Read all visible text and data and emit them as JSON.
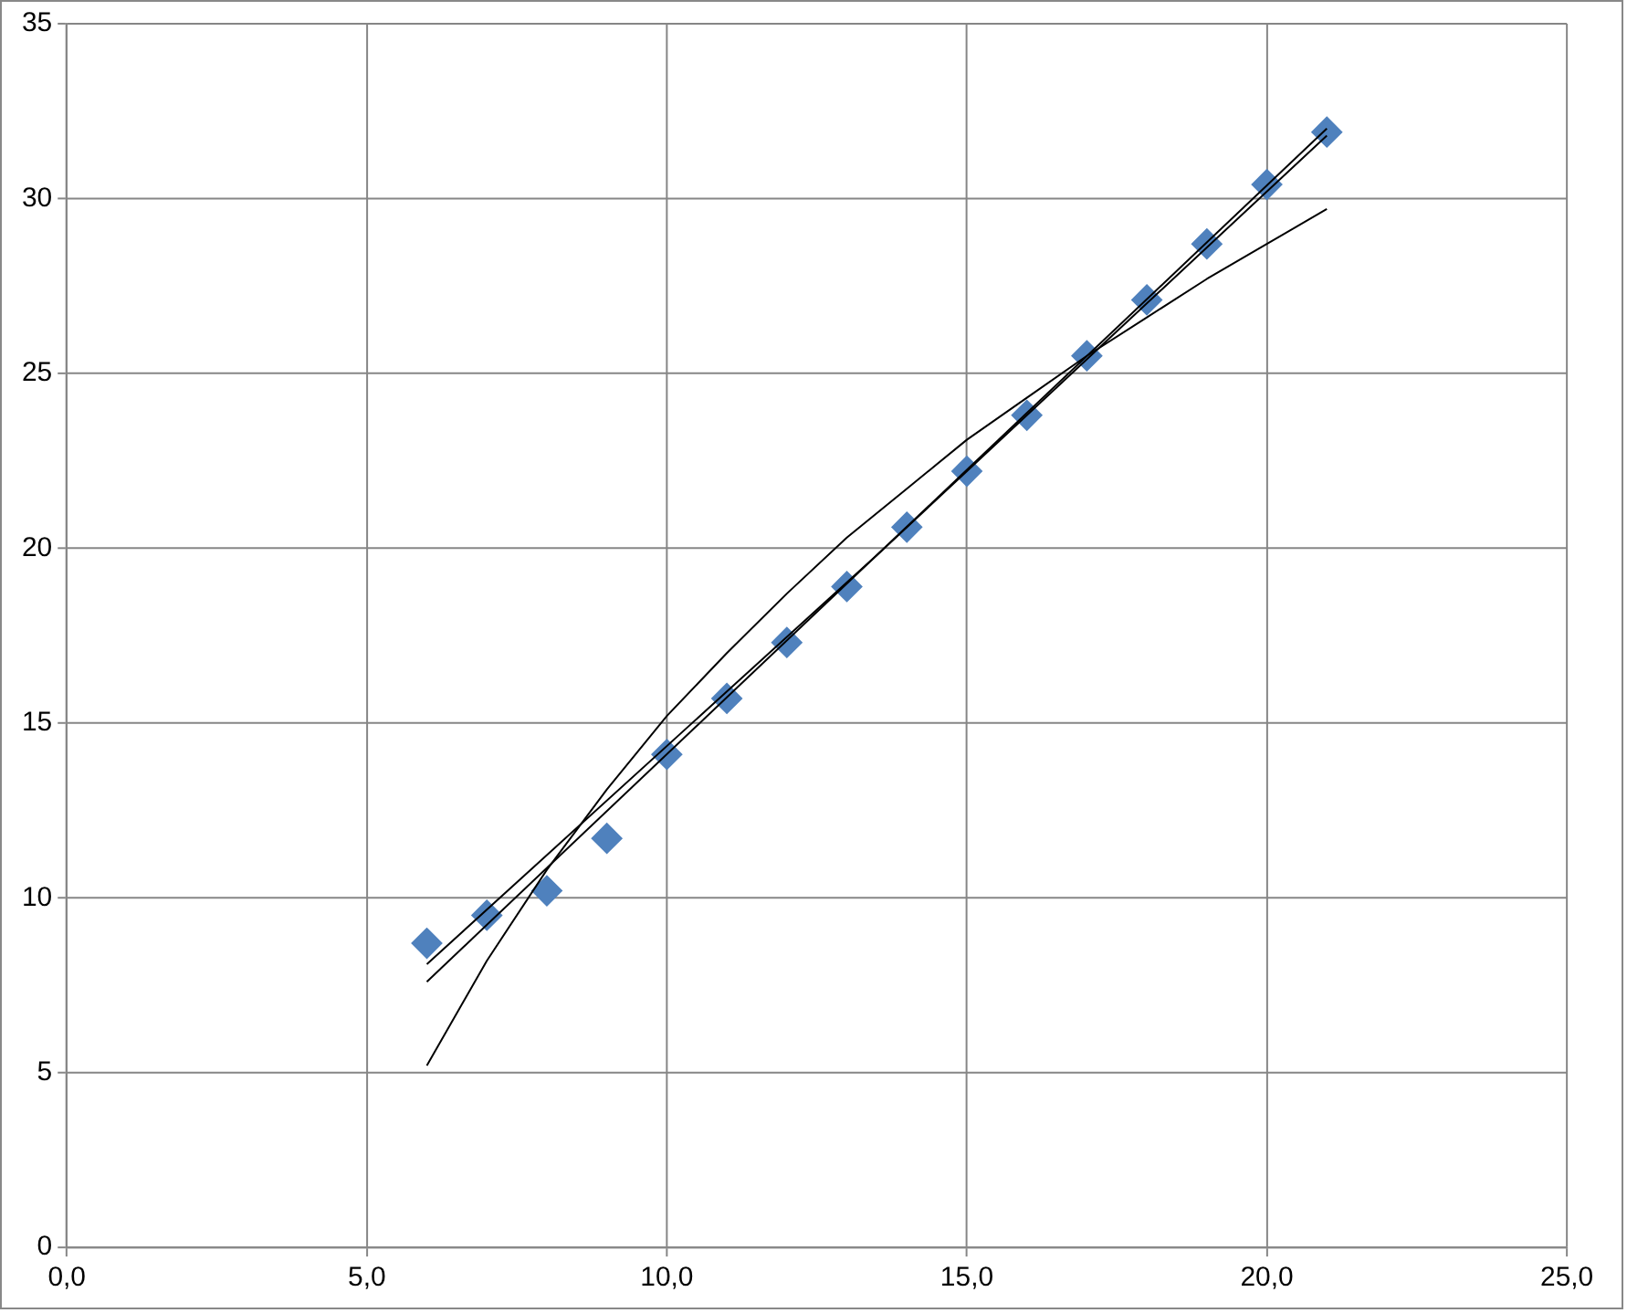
{
  "chart_data": {
    "type": "scatter",
    "marker": "diamond",
    "grid": true,
    "legend": false,
    "xlim": [
      0,
      25
    ],
    "xticks": [
      {
        "value": 0,
        "label": "0,0"
      },
      {
        "value": 5,
        "label": "5,0"
      },
      {
        "value": 10,
        "label": "10,0"
      },
      {
        "value": 15,
        "label": "15,0"
      },
      {
        "value": 20,
        "label": "20,0"
      },
      {
        "value": 25,
        "label": "25,0"
      }
    ],
    "ylim": [
      0,
      35
    ],
    "yticks": [
      0,
      5,
      10,
      15,
      20,
      25,
      30,
      35
    ],
    "series": [
      {
        "type": "scatter",
        "color": "#4f81bd",
        "x": [
          6,
          7,
          8,
          9,
          10,
          11,
          12,
          13,
          14,
          15,
          16,
          17,
          18,
          19,
          20,
          21
        ],
        "values": [
          8.7,
          9.5,
          10.2,
          11.7,
          14.1,
          15.7,
          17.3,
          18.9,
          20.6,
          22.2,
          23.8,
          25.5,
          27.1,
          28.7,
          30.4,
          31.9
        ]
      },
      {
        "type": "line",
        "marker": "none",
        "color": "#000000",
        "x": [
          6,
          21
        ],
        "values": [
          7.6,
          32.0
        ]
      },
      {
        "type": "line",
        "marker": "none",
        "color": "#000000",
        "x": [
          6,
          13.5,
          21
        ],
        "values": [
          8.1,
          19.8,
          31.8
        ]
      },
      {
        "type": "line",
        "marker": "none",
        "color": "#000000",
        "x": [
          6,
          7,
          8,
          9,
          10,
          11,
          12,
          13,
          14,
          15,
          16,
          17,
          18,
          19,
          20,
          21
        ],
        "values": [
          5.2,
          8.2,
          10.8,
          13.1,
          15.2,
          17.0,
          18.7,
          20.3,
          21.7,
          23.1,
          24.3,
          25.5,
          26.6,
          27.7,
          28.7,
          29.7
        ]
      }
    ]
  }
}
